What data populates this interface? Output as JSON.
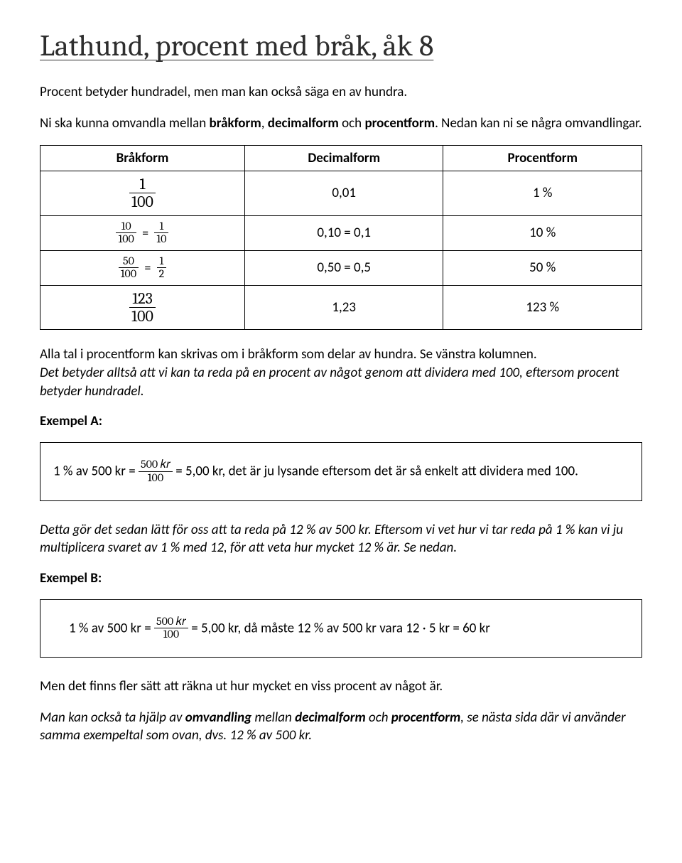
{
  "title": "Lathund, procent med bråk, åk 8",
  "intro1a": "Procent betyder hundradel, men man kan också säga en av hundra.",
  "intro2a": "Ni ska kunna omvandla mellan ",
  "intro2b": "bråkform",
  "intro2c": ", ",
  "intro2d": "decimalform",
  "intro2e": " och ",
  "intro2f": "procentform",
  "intro2g": ". Nedan kan ni se några omvandlingar.",
  "table": {
    "h1": "Bråkform",
    "h2": "Decimalform",
    "h3": "Procentform",
    "r1_num": "1",
    "r1_den": "100",
    "r1_dec": "0,01",
    "r1_pct": "1 %",
    "r2_a_num": "10",
    "r2_a_den": "100",
    "r2_b_num": "1",
    "r2_b_den": "10",
    "r2_dec": "0,10 = 0,1",
    "r2_pct": "10 %",
    "r3_a_num": "50",
    "r3_a_den": "100",
    "r3_b_num": "1",
    "r3_b_den": "2",
    "r3_dec": "0,50 = 0,5",
    "r3_pct": "50 %",
    "r4_num": "123",
    "r4_den": "100",
    "r4_dec": "1,23",
    "r4_pct": "123 %"
  },
  "eq": "=",
  "p_after_table_a": "Alla tal i procentform kan skrivas om i bråkform som delar av hundra. Se vänstra kolumnen.",
  "p_after_table_b": "Det betyder alltså att vi kan ta reda på en procent av något genom att dividera med 100, eftersom procent betyder hundradel.",
  "labelA": "Exempel A:",
  "exA_left": "1 % av 500 kr = ",
  "exA_num": "500 𝑘𝑟",
  "exA_den": "100",
  "exA_right": " = 5,00 kr, det är ju lysande eftersom det är så enkelt att dividera med 100.",
  "p_mid": "Detta gör det sedan lätt för oss att ta reda på 12 % av 500 kr. Eftersom vi vet hur vi tar reda på 1 % kan vi ju multiplicera svaret av 1 % med 12, för att veta hur mycket 12 % är. Se nedan.",
  "labelB": "Exempel B:",
  "exB_left": "1 % av 500 kr = ",
  "exB_num": "500 𝑘𝑟",
  "exB_den": "100",
  "exB_right": " = 5,00 kr, då måste 12 % av 500 kr vara 12 · 5 kr = 60 kr",
  "p_end1": "Men det finns fler sätt att räkna ut hur mycket en viss procent av något är.",
  "p_end2a": "Man kan också ta hjälp av ",
  "p_end2b": "omvandling",
  "p_end2c": " mellan ",
  "p_end2d": "decimalform",
  "p_end2e": " och ",
  "p_end2f": "procentform",
  "p_end2g": ", se nästa sida där vi använder samma exempeltal som ovan, dvs. 12 % av 500 kr."
}
